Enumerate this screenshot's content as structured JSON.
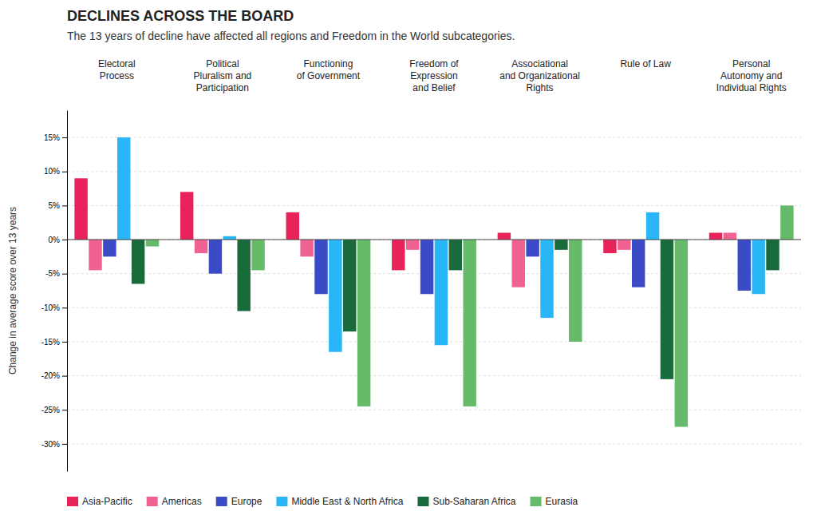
{
  "chart_data": {
    "type": "bar",
    "title": "DECLINES ACROSS THE BOARD",
    "subtitle": "The 13 years of decline have affected all regions and Freedom in the World subcategories.",
    "y_label": "Change in average score over 13 years",
    "categories": [
      "Electoral\nProcess",
      "Political\nPluralism and\nParticipation",
      "Functioning\nof Government",
      "Freedom of\nExpression\nand Belief",
      "Associational\nand Organizational\nRights",
      "Rule of Law",
      "Personal\nAutonomy and\nIndividual Rights"
    ],
    "series": [
      {
        "name": "Asia-Pacific",
        "color": "#E8235A",
        "values": [
          9.0,
          7.0,
          4.0,
          -4.5,
          1.0,
          -2.0,
          1.0
        ]
      },
      {
        "name": "Americas",
        "color": "#F06292",
        "values": [
          -4.5,
          -2.0,
          -2.5,
          -1.5,
          -7.0,
          -1.5,
          1.0
        ]
      },
      {
        "name": "Europe",
        "color": "#3B4BC8",
        "values": [
          -2.5,
          -5.0,
          -8.0,
          -8.0,
          -2.5,
          -7.0,
          -7.5
        ]
      },
      {
        "name": "Middle East & North Africa",
        "color": "#29B6F6",
        "values": [
          15.0,
          0.5,
          -16.5,
          -15.5,
          -11.5,
          4.0,
          -8.0
        ]
      },
      {
        "name": "Sub-Saharan Africa",
        "color": "#1A6B3C",
        "values": [
          -6.5,
          -10.5,
          -13.5,
          -4.5,
          -1.5,
          -20.5,
          -4.5
        ]
      },
      {
        "name": "Eurasia",
        "color": "#66BB6A",
        "values": [
          -1.0,
          -4.5,
          -24.5,
          -24.5,
          -15.0,
          -27.5,
          5.0
        ]
      }
    ],
    "ylim": [
      -34,
      19
    ],
    "yticks": [
      {
        "value": -30,
        "label": "-30%"
      },
      {
        "value": -25,
        "label": "-25%"
      },
      {
        "value": -20,
        "label": "-20%"
      },
      {
        "value": -15,
        "label": "-15%"
      },
      {
        "value": -10,
        "label": "-10%"
      },
      {
        "value": -5,
        "label": "-5%"
      },
      {
        "value": 0,
        "label": "0%"
      },
      {
        "value": 5,
        "label": "5%"
      },
      {
        "value": 10,
        "label": "10%"
      },
      {
        "value": 15,
        "label": "15%"
      }
    ],
    "grid": true,
    "legend": "bottom"
  }
}
